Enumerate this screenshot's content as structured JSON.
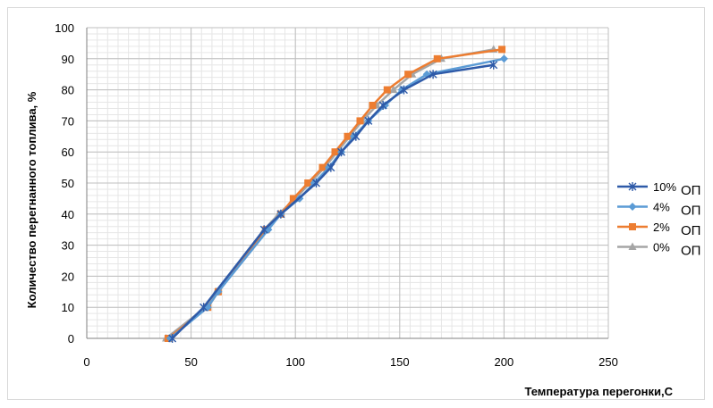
{
  "chart_data": {
    "type": "line",
    "xlabel": "Температура перегонки,С",
    "ylabel": "Количество перегнанного топлива, %",
    "xlim": [
      0,
      250
    ],
    "ylim": [
      0,
      100
    ],
    "x_ticks": [
      0,
      50,
      100,
      150,
      200,
      250
    ],
    "y_ticks": [
      0,
      10,
      20,
      30,
      40,
      50,
      60,
      70,
      80,
      90,
      100
    ],
    "grid": "on",
    "legend_position": "right",
    "series": [
      {
        "name_pct": "10%",
        "name_suffix": "ОП",
        "color": "#2e5aa8",
        "marker": "asterisk",
        "x": [
          41,
          56,
          85,
          93,
          110,
          117,
          122,
          129,
          135,
          142,
          152,
          166,
          195
        ],
        "y": [
          0,
          10,
          35,
          40,
          50,
          55,
          60,
          65,
          70,
          75,
          80,
          85,
          88
        ]
      },
      {
        "name_pct": "4%",
        "name_suffix": "ОП",
        "color": "#5b9bd5",
        "marker": "diamond",
        "x": [
          40,
          58,
          63,
          87,
          93,
          102,
          109,
          116,
          122,
          128,
          135,
          143,
          151,
          163,
          200
        ],
        "y": [
          0,
          10,
          15,
          35,
          40,
          45,
          50,
          55,
          60,
          65,
          70,
          75,
          80,
          85,
          90
        ]
      },
      {
        "name_pct": "2%",
        "name_suffix": "ОП",
        "color": "#ed7d31",
        "marker": "square",
        "x": [
          39,
          58,
          63,
          86,
          93,
          99,
          106,
          113,
          119,
          125,
          131,
          137,
          144,
          154,
          168,
          199
        ],
        "y": [
          0,
          10,
          15,
          35,
          40,
          45,
          50,
          55,
          60,
          65,
          70,
          75,
          80,
          85,
          90,
          93
        ]
      },
      {
        "name_pct": "0%",
        "name_suffix": "ОП",
        "color": "#a5a5a5",
        "marker": "triangle",
        "x": [
          38,
          57,
          62,
          85,
          92,
          100,
          107,
          114,
          120,
          126,
          132,
          139,
          147,
          156,
          170,
          195
        ],
        "y": [
          0,
          10,
          15,
          35,
          40,
          45,
          50,
          55,
          60,
          65,
          70,
          75,
          80,
          85,
          90,
          93
        ]
      }
    ]
  }
}
